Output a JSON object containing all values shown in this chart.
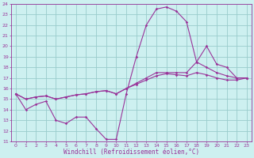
{
  "xlabel": "Windchill (Refroidissement éolien,°C)",
  "bg_color": "#cdf0f0",
  "grid_color": "#99cccc",
  "line_color": "#993399",
  "xlim": [
    -0.5,
    23.5
  ],
  "ylim": [
    11,
    24
  ],
  "xticks": [
    0,
    1,
    2,
    3,
    4,
    5,
    6,
    7,
    8,
    9,
    10,
    11,
    12,
    13,
    14,
    15,
    16,
    17,
    18,
    19,
    20,
    21,
    22,
    23
  ],
  "yticks": [
    11,
    12,
    13,
    14,
    15,
    16,
    17,
    18,
    19,
    20,
    21,
    22,
    23,
    24
  ],
  "line1_x": [
    0,
    1,
    2,
    3,
    4,
    5,
    6,
    7,
    8,
    9,
    10,
    11,
    12,
    13,
    14,
    15,
    16,
    17,
    18,
    19,
    20,
    21,
    22,
    23
  ],
  "line1_y": [
    15.5,
    14.0,
    14.5,
    14.8,
    13.0,
    12.7,
    13.3,
    13.3,
    12.2,
    11.2,
    11.2,
    15.5,
    19.0,
    22.0,
    23.5,
    23.7,
    23.3,
    22.3,
    18.5,
    20.0,
    18.3,
    18.0,
    17.0,
    17.0
  ],
  "line2_x": [
    0,
    1,
    2,
    3,
    4,
    5,
    6,
    7,
    8,
    9,
    10,
    11,
    12,
    13,
    14,
    15,
    16,
    17,
    18,
    19,
    20,
    21,
    22,
    23
  ],
  "line2_y": [
    15.5,
    15.0,
    15.2,
    15.3,
    15.0,
    15.2,
    15.4,
    15.5,
    15.7,
    15.8,
    15.5,
    16.0,
    16.5,
    17.0,
    17.5,
    17.5,
    17.5,
    17.5,
    18.5,
    18.0,
    17.5,
    17.2,
    17.0,
    17.0
  ],
  "line3_x": [
    0,
    1,
    2,
    3,
    4,
    5,
    6,
    7,
    8,
    9,
    10,
    11,
    12,
    13,
    14,
    15,
    16,
    17,
    18,
    19,
    20,
    21,
    22,
    23
  ],
  "line3_y": [
    15.5,
    15.0,
    15.2,
    15.3,
    15.0,
    15.2,
    15.4,
    15.5,
    15.7,
    15.8,
    15.5,
    16.0,
    16.4,
    16.8,
    17.2,
    17.4,
    17.3,
    17.2,
    17.5,
    17.3,
    17.0,
    16.8,
    16.8,
    17.0
  ],
  "tick_fontsize": 4.5,
  "xlabel_fontsize": 5.5
}
